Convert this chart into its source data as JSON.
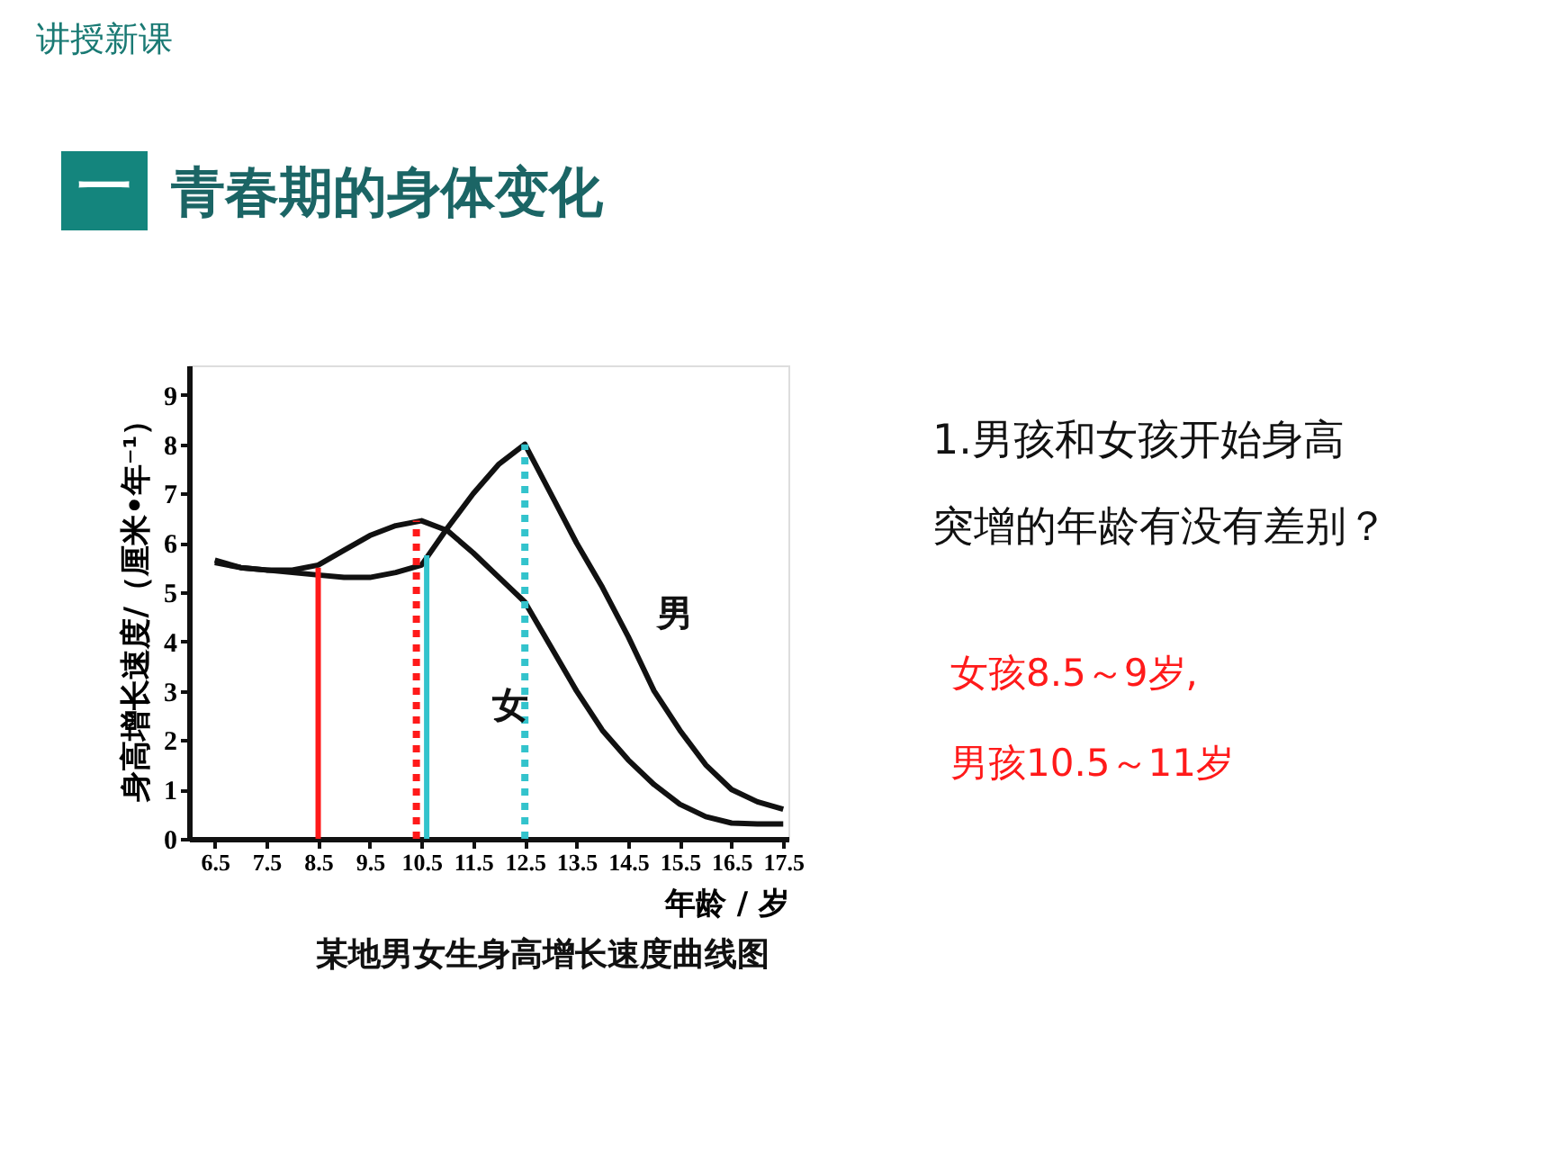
{
  "chart_data": {
    "type": "line",
    "title": "某地男女生身高增长速度曲线图",
    "xlabel": "年龄 / 岁",
    "ylabel": "身高增长速度/（厘米•年⁻¹）",
    "xlim": [
      6,
      17.6
    ],
    "xticks": [
      6.5,
      7.5,
      8.5,
      9.5,
      10.5,
      11.5,
      12.5,
      13.5,
      14.5,
      15.5,
      16.5,
      17.5
    ],
    "ylim": [
      0,
      9.6
    ],
    "yticks": [
      0,
      1,
      2,
      3,
      4,
      5,
      6,
      7,
      8,
      9
    ],
    "grid": false,
    "legend": false,
    "marker": "none",
    "series": [
      {
        "name": "男",
        "color": "#111111",
        "line_style": "solid",
        "x": [
          6.5,
          7,
          7.5,
          8,
          8.5,
          9,
          9.5,
          10,
          10.5,
          11,
          11.5,
          12,
          12.5,
          13,
          13.5,
          14,
          14.5,
          15,
          15.5,
          16,
          16.5,
          17,
          17.5
        ],
        "values": [
          5.6,
          5.5,
          5.45,
          5.4,
          5.35,
          5.3,
          5.3,
          5.4,
          5.55,
          6.3,
          7.0,
          7.6,
          8.0,
          7.0,
          6.0,
          5.1,
          4.1,
          3.0,
          2.2,
          1.5,
          1.0,
          0.75,
          0.6
        ]
      },
      {
        "name": "女",
        "color": "#111111",
        "line_style": "solid",
        "x": [
          6.5,
          7,
          7.5,
          8,
          8.5,
          9,
          9.5,
          10,
          10.5,
          11,
          11.5,
          12,
          12.5,
          13,
          13.5,
          14,
          14.5,
          15,
          15.5,
          16,
          16.5,
          17,
          17.5
        ],
        "values": [
          5.65,
          5.5,
          5.45,
          5.45,
          5.55,
          5.85,
          6.15,
          6.35,
          6.45,
          6.25,
          5.8,
          5.3,
          4.8,
          3.9,
          3.0,
          2.2,
          1.6,
          1.1,
          0.7,
          0.45,
          0.32,
          0.3,
          0.3
        ]
      },
      {
        "color": "#ff1a1a",
        "line_style": "solid",
        "x": [
          8.5,
          8.5
        ],
        "values": [
          0,
          5.5
        ]
      },
      {
        "color": "#ff1a1a",
        "line_style": "dotted",
        "x": [
          10.4,
          10.4
        ],
        "values": [
          0,
          6.45
        ]
      },
      {
        "color": "#33c3cc",
        "line_style": "solid",
        "x": [
          10.6,
          10.6
        ],
        "values": [
          0,
          5.75
        ]
      },
      {
        "color": "#33c3cc",
        "line_style": "dotted",
        "x": [
          12.5,
          12.5
        ],
        "values": [
          0,
          8.0
        ]
      }
    ],
    "annotations": [
      "讲授新课",
      "一",
      "青春期的身体变化",
      "1.男孩和女孩开始身高",
      "突增的年龄有没有差别？",
      "女孩8.5～9岁,",
      "男孩10.5～11岁"
    ]
  }
}
